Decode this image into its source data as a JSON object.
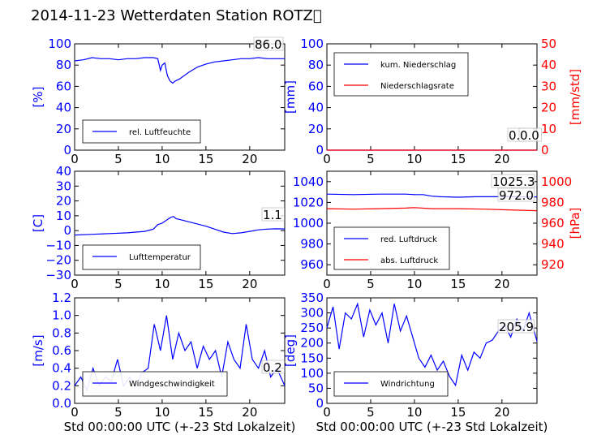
{
  "title": "2014-11-23 Wetterdaten Station ROTZ\u0000",
  "xlabel": "Std 00:00:00 UTC (+-23 Std Lokalzeit)",
  "colors": {
    "primary": "#0000ff",
    "secondary": "#ff0000",
    "axis": "#000000"
  },
  "chart_data": [
    {
      "type": "line",
      "panel": "humidity",
      "xlim": [
        0,
        24
      ],
      "ylim": [
        0,
        100
      ],
      "xticks": [
        "0",
        "5",
        "10",
        "15",
        "20"
      ],
      "yticks": [
        "0",
        "20",
        "40",
        "60",
        "80",
        "100"
      ],
      "ylabel": "[%]",
      "value_label": "86.0",
      "legend": "bottom-left",
      "series": [
        {
          "name": "rel. Luftfeuchte",
          "axis": "left",
          "x": [
            0,
            1,
            2,
            3,
            4,
            5,
            6,
            7,
            8,
            9,
            9.5,
            9.8,
            10,
            10.3,
            10.6,
            10.9,
            11.2,
            11.5,
            12,
            13,
            14,
            15,
            16,
            17,
            18,
            19,
            20,
            21,
            22,
            23,
            24
          ],
          "y": [
            84,
            85,
            87,
            86,
            86,
            85,
            86,
            86,
            87,
            87,
            86,
            75,
            80,
            82,
            70,
            65,
            63,
            65,
            67,
            73,
            78,
            81,
            83,
            84,
            85,
            86,
            86,
            87,
            86,
            86,
            86
          ]
        }
      ]
    },
    {
      "type": "line",
      "panel": "precipitation",
      "xlim": [
        0,
        24
      ],
      "ylim": [
        0,
        100
      ],
      "ylim_right": [
        0,
        50
      ],
      "xticks": [
        "0",
        "5",
        "10",
        "15",
        "20"
      ],
      "yticks": [
        "0",
        "20",
        "40",
        "60",
        "80",
        "100"
      ],
      "yticks_right": [
        "0",
        "10",
        "20",
        "30",
        "40",
        "50"
      ],
      "ylabel": "[mm]",
      "ylabel_right": "[mm/std]",
      "value_label": "0.0",
      "value_label_2": "0.0",
      "legend": "top-left",
      "series": [
        {
          "name": "kum. Niederschlag",
          "axis": "left",
          "x": [
            0,
            24
          ],
          "y": [
            0,
            0
          ]
        },
        {
          "name": "Niederschlagsrate",
          "axis": "right",
          "x": [
            0,
            24
          ],
          "y": [
            0,
            0
          ]
        }
      ]
    },
    {
      "type": "line",
      "panel": "temperature",
      "xlim": [
        0,
        24
      ],
      "ylim": [
        -30,
        40
      ],
      "xticks": [
        "0",
        "5",
        "10",
        "15",
        "20"
      ],
      "yticks": [
        "−30",
        "−20",
        "−10",
        "0",
        "10",
        "20",
        "30",
        "40"
      ],
      "ylabel": "[C]",
      "value_label": "1.1",
      "legend": "bottom-left",
      "series": [
        {
          "name": "Lufttemperatur",
          "axis": "left",
          "x": [
            0,
            2,
            4,
            6,
            8,
            9,
            9.5,
            10,
            10.5,
            11,
            11.3,
            11.6,
            12,
            13,
            14,
            15,
            16,
            17,
            18,
            19,
            20,
            21,
            22,
            23,
            24
          ],
          "y": [
            -3,
            -2.5,
            -2,
            -1.5,
            -0.5,
            1,
            4,
            5,
            7,
            9,
            9.5,
            8,
            7.5,
            6,
            4.5,
            3,
            1,
            -1,
            -2,
            -1.5,
            -0.5,
            0.5,
            1,
            1.2,
            1.1
          ]
        }
      ]
    },
    {
      "type": "line",
      "panel": "pressure",
      "xlim": [
        0,
        24
      ],
      "ylim": [
        950,
        1050
      ],
      "ylim_right": [
        910,
        1010
      ],
      "xticks": [
        "0",
        "5",
        "10",
        "15",
        "20"
      ],
      "yticks": [
        "960",
        "980",
        "1000",
        "1020",
        "1040"
      ],
      "yticks_right": [
        "920",
        "940",
        "960",
        "980",
        "1000"
      ],
      "ylabel_right": "[hPa]",
      "value_label": "1025.3",
      "value_label_2": "972.0",
      "legend": "bottom-left",
      "series": [
        {
          "name": "red. Luftdruck",
          "axis": "left",
          "x": [
            0,
            3,
            6,
            9,
            10,
            11,
            12,
            13,
            15,
            17,
            19,
            21,
            23,
            24
          ],
          "y": [
            1028,
            1027.5,
            1028,
            1028,
            1027.5,
            1027.5,
            1026,
            1025.5,
            1025,
            1025.5,
            1025.5,
            1025.5,
            1025.3,
            1025.3
          ]
        },
        {
          "name": "abs. Luftdruck",
          "axis": "right",
          "x": [
            0,
            3,
            6,
            9,
            10,
            12,
            15,
            18,
            20,
            22,
            24
          ],
          "y": [
            974,
            973.5,
            974,
            974.5,
            975,
            974,
            974,
            973.5,
            973,
            972.5,
            972
          ]
        }
      ]
    },
    {
      "type": "line",
      "panel": "windspeed",
      "xlim": [
        0,
        24
      ],
      "ylim": [
        0,
        1.2
      ],
      "xticks": [
        "0",
        "5",
        "10",
        "15",
        "20"
      ],
      "yticks": [
        "0.0",
        "0.2",
        "0.4",
        "0.6",
        "0.8",
        "1.0",
        "1.2"
      ],
      "ylabel": "[m/s]",
      "value_label": "0.2",
      "legend": "bottom-left",
      "series": [
        {
          "name": "Windgeschwindigkeit",
          "axis": "left",
          "x": [
            0,
            0.7,
            1.4,
            2.1,
            2.8,
            3.5,
            4.2,
            4.9,
            5.6,
            6.3,
            7,
            7.7,
            8.4,
            9.1,
            9.8,
            10.5,
            11.2,
            11.9,
            12.6,
            13.3,
            14,
            14.7,
            15.4,
            16.1,
            16.8,
            17.5,
            18.2,
            18.9,
            19.6,
            20.3,
            21,
            21.7,
            22.4,
            23.1,
            24
          ],
          "y": [
            0.2,
            0.3,
            0.15,
            0.4,
            0.2,
            0.3,
            0.25,
            0.5,
            0.2,
            0.3,
            0.2,
            0.35,
            0.4,
            0.9,
            0.6,
            1.0,
            0.5,
            0.8,
            0.6,
            0.7,
            0.4,
            0.65,
            0.5,
            0.6,
            0.3,
            0.7,
            0.5,
            0.4,
            0.9,
            0.5,
            0.4,
            0.6,
            0.3,
            0.4,
            0.2
          ]
        }
      ]
    },
    {
      "type": "line",
      "panel": "winddirection",
      "xlim": [
        0,
        24
      ],
      "ylim": [
        0,
        350
      ],
      "xticks": [
        "0",
        "5",
        "10",
        "15",
        "20"
      ],
      "yticks": [
        "0",
        "50",
        "100",
        "150",
        "200",
        "250",
        "300",
        "350"
      ],
      "ylabel": "[deg]",
      "value_label": "205.9",
      "legend": "bottom-left",
      "series": [
        {
          "name": "Windrichtung",
          "axis": "left",
          "x": [
            0,
            0.7,
            1.4,
            2.1,
            2.8,
            3.5,
            4.2,
            4.9,
            5.6,
            6.3,
            7,
            7.7,
            8.4,
            9.1,
            9.8,
            10.5,
            11.2,
            11.9,
            12.6,
            13.3,
            14,
            14.7,
            15.4,
            16.1,
            16.8,
            17.5,
            18.2,
            18.9,
            19.6,
            20.3,
            21,
            21.7,
            22.4,
            23.1,
            24
          ],
          "y": [
            250,
            320,
            180,
            300,
            280,
            330,
            220,
            310,
            260,
            300,
            200,
            330,
            240,
            290,
            220,
            150,
            120,
            160,
            110,
            140,
            90,
            60,
            160,
            110,
            170,
            150,
            200,
            210,
            240,
            260,
            220,
            280,
            240,
            300,
            206
          ]
        }
      ]
    }
  ]
}
